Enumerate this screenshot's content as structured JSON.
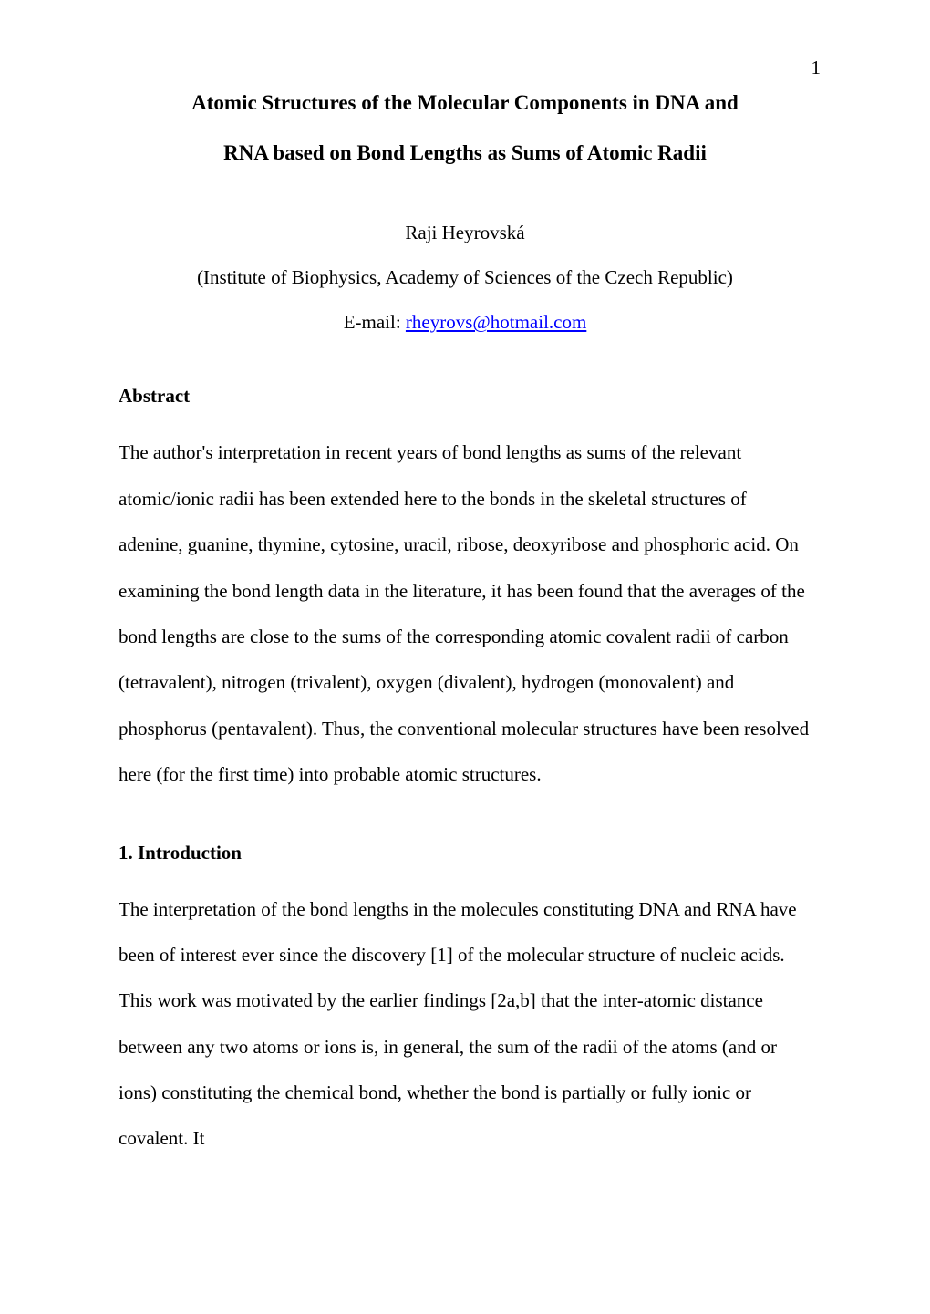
{
  "page": {
    "number": "1"
  },
  "title": {
    "line1": "Atomic Structures of the Molecular Components in DNA and",
    "line2": "RNA based on Bond Lengths as Sums of Atomic Radii"
  },
  "author": "Raji Heyrovská",
  "affiliation": "(Institute of Biophysics, Academy of Sciences of the Czech Republic)",
  "email": {
    "label": "E-mail: ",
    "address": "rheyrovs@hotmail.com"
  },
  "abstract": {
    "heading": "Abstract",
    "body": "The author's interpretation in recent years of bond lengths as sums of the relevant atomic/ionic radii has been extended here to the bonds in the skeletal structures of adenine, guanine, thymine, cytosine, uracil, ribose, deoxyribose and phosphoric acid. On examining the bond length data in the literature, it has been found that the averages of the bond lengths are close to the sums of the corresponding atomic covalent radii of carbon (tetravalent), nitrogen (trivalent), oxygen (divalent), hydrogen (monovalent) and phosphorus (pentavalent). Thus, the conventional molecular structures have been resolved here (for the first time) into probable atomic structures."
  },
  "introduction": {
    "heading": "1. Introduction",
    "body": "The interpretation of the bond lengths in the molecules constituting DNA and RNA have been of interest ever since the discovery [1] of the molecular structure of nucleic acids. This work was motivated by the earlier findings [2a,b] that the inter-atomic distance between any two atoms or ions is, in general, the sum of the radii of the atoms (and or ions) constituting the chemical bond, whether the bond is partially or fully ionic or covalent. It"
  },
  "colors": {
    "text": "#000000",
    "background": "#ffffff",
    "link": "#0000ff"
  },
  "typography": {
    "font_family": "Times New Roman",
    "title_fontsize": 23,
    "body_fontsize": 21,
    "title_weight": "bold",
    "heading_weight": "bold",
    "line_height": 2.4
  }
}
